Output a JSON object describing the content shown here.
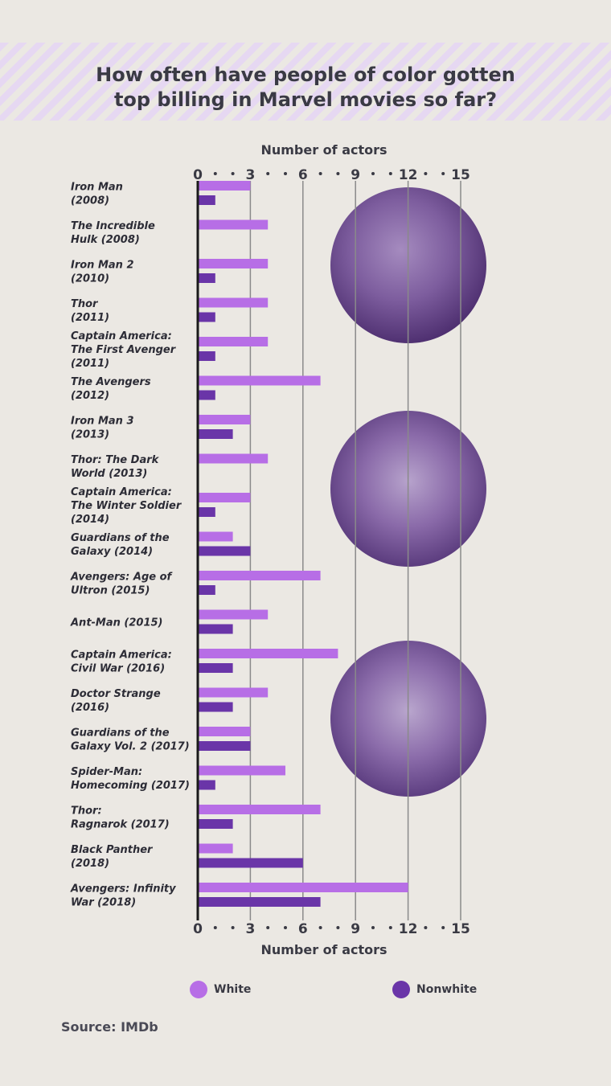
{
  "title_line1": "How often have people of color gotten",
  "title_line2": "top billing in Marvel movies so far?",
  "source": "Source: IMDb",
  "colors": {
    "white": "#b76ee6",
    "nonwhite": "#6a35a8",
    "axis": "#1a1a1a",
    "grid": "#8a8a8a"
  },
  "chart_data": {
    "type": "bar",
    "orientation": "horizontal",
    "xlabel": "Number of actors",
    "xlim": [
      0,
      15
    ],
    "xticks": [
      0,
      3,
      6,
      9,
      12,
      15
    ],
    "categories": [
      [
        "Iron Man",
        "(2008)"
      ],
      [
        "The Incredible",
        "Hulk (2008)"
      ],
      [
        "Iron Man 2",
        "(2010)"
      ],
      [
        "Thor",
        "(2011)"
      ],
      [
        "Captain America:",
        "The First Avenger",
        "(2011)"
      ],
      [
        "The Avengers",
        "(2012)"
      ],
      [
        "Iron Man 3",
        "(2013)"
      ],
      [
        "Thor: The Dark",
        "World (2013)"
      ],
      [
        "Captain America:",
        "The Winter Soldier",
        "(2014)"
      ],
      [
        "Guardians of the",
        "Galaxy (2014)"
      ],
      [
        "Avengers: Age of",
        "Ultron (2015)"
      ],
      [
        "Ant-Man (2015)"
      ],
      [
        "Captain America:",
        "Civil War (2016)"
      ],
      [
        "Doctor Strange",
        "(2016)"
      ],
      [
        "Guardians of the",
        "Galaxy Vol. 2 (2017)"
      ],
      [
        "Spider-Man:",
        "Homecoming (2017)"
      ],
      [
        "Thor:",
        "Ragnarok (2017)"
      ],
      [
        "Black Panther",
        "(2018)"
      ],
      [
        "Avengers: Infinity",
        "War (2018)"
      ]
    ],
    "series": [
      {
        "name": "White",
        "values": [
          3,
          4,
          4,
          4,
          4,
          7,
          3,
          4,
          3,
          2,
          7,
          4,
          8,
          4,
          3,
          5,
          7,
          2,
          12
        ]
      },
      {
        "name": "Nonwhite",
        "values": [
          1,
          0,
          1,
          1,
          1,
          1,
          2,
          0,
          1,
          3,
          1,
          2,
          2,
          2,
          3,
          1,
          2,
          6,
          7
        ]
      }
    ],
    "legend_position": "bottom",
    "grid": true
  }
}
